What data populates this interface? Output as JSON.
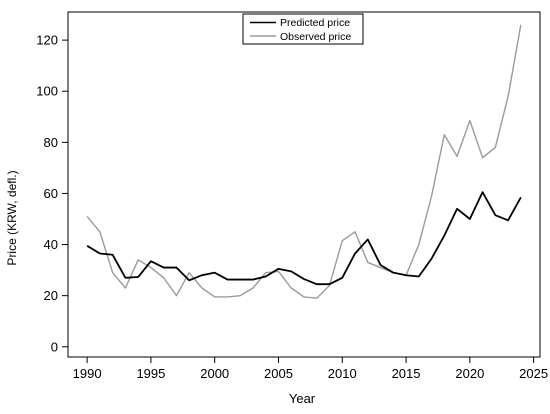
{
  "chart_data": {
    "type": "line",
    "title": "",
    "xlabel": "Year",
    "ylabel": "Price (KRW, defl.)",
    "xlim": [
      1988.5,
      2025.5
    ],
    "ylim": [
      -4,
      131
    ],
    "xticks": [
      1990,
      1995,
      2000,
      2005,
      2010,
      2015,
      2020,
      2025
    ],
    "yticks": [
      0,
      20,
      40,
      60,
      80,
      100,
      120
    ],
    "legend_position": "top-center",
    "grid": false,
    "x": [
      1990,
      1991,
      1992,
      1993,
      1994,
      1995,
      1996,
      1997,
      1998,
      1999,
      2000,
      2001,
      2002,
      2003,
      2004,
      2005,
      2006,
      2007,
      2008,
      2009,
      2010,
      2011,
      2012,
      2013,
      2014,
      2015,
      2016,
      2017,
      2018,
      2019,
      2020,
      2021,
      2022,
      2023,
      2024
    ],
    "series": [
      {
        "name": "Predicted price",
        "color": "#000000",
        "values": [
          39.5,
          36.5,
          36,
          27,
          27.3,
          33.5,
          31,
          31,
          26,
          28,
          29,
          26.3,
          26.3,
          26.3,
          27.5,
          30.5,
          29.5,
          26.5,
          24.5,
          24.5,
          27,
          36.5,
          42,
          32,
          29,
          28,
          27.5,
          34.5,
          43.5,
          54,
          50,
          60.5,
          51.5,
          49.5,
          58.5
        ]
      },
      {
        "name": "Observed price",
        "color": "#9a9a9a",
        "values": [
          51,
          45,
          29,
          23,
          34,
          31,
          27,
          20,
          29,
          23,
          19.5,
          19.5,
          20,
          23,
          29,
          29.5,
          23,
          19.5,
          19,
          24,
          41.5,
          45,
          33,
          31,
          29,
          28,
          40,
          59,
          83,
          74.5,
          88.5,
          74,
          78,
          98,
          126
        ]
      }
    ]
  }
}
